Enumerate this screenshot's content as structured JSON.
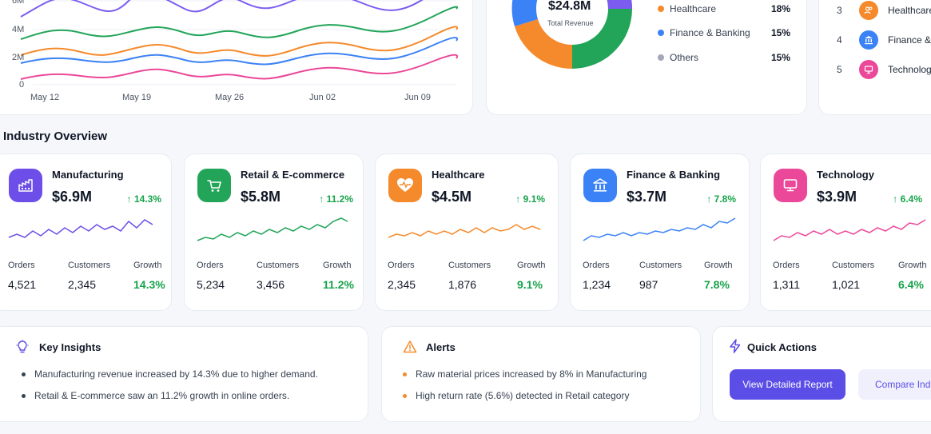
{
  "revenue_trend": {
    "y_ticks": [
      "6M",
      "4M",
      "2M",
      "0"
    ],
    "x_ticks": [
      "May 12",
      "May 19",
      "May 26",
      "Jun 02",
      "Jun 09"
    ]
  },
  "distribution": {
    "center_value": "$24.8M",
    "center_label": "Total Revenue",
    "legend": [
      {
        "name": "Healthcare",
        "pct": "18%",
        "color": "#f58a2c"
      },
      {
        "name": "Finance & Banking",
        "pct": "15%",
        "color": "#3b82f6"
      },
      {
        "name": "Others",
        "pct": "15%",
        "color": "#a3a8b8"
      }
    ]
  },
  "top_industries": [
    {
      "rank": "3",
      "name": "Healthcare",
      "icon": "users-icon",
      "color": "#f58a2c"
    },
    {
      "rank": "4",
      "name": "Finance & B",
      "icon": "bank-icon",
      "color": "#3b82f6"
    },
    {
      "rank": "5",
      "name": "Technology",
      "icon": "monitor-icon",
      "color": "#ec4899"
    }
  ],
  "industry_overview": {
    "title": "Industry Overview",
    "stat_labels": {
      "orders": "Orders",
      "customers": "Customers",
      "growth": "Growth"
    },
    "cards": [
      {
        "name": "Manufacturing",
        "value": "$6.9M",
        "growth": "14.3%",
        "orders": "4,521",
        "customers": "2,345",
        "icon": "factory-icon",
        "color": "#6d4ee8",
        "spark_color": "#6d4ee8"
      },
      {
        "name": "Retail & E-commerce",
        "value": "$5.8M",
        "growth": "11.2%",
        "orders": "5,234",
        "customers": "3,456",
        "icon": "cart-icon",
        "color": "#22a559",
        "spark_color": "#22a559"
      },
      {
        "name": "Healthcare",
        "value": "$4.5M",
        "growth": "9.1%",
        "orders": "2,345",
        "customers": "1,876",
        "icon": "heart-icon",
        "color": "#f58a2c",
        "spark_color": "#f58a2c"
      },
      {
        "name": "Finance & Banking",
        "value": "$3.7M",
        "growth": "7.8%",
        "orders": "1,234",
        "customers": "987",
        "icon": "bank-icon",
        "color": "#3b82f6",
        "spark_color": "#3b82f6"
      },
      {
        "name": "Technology",
        "value": "$3.9M",
        "growth": "6.4%",
        "orders": "1,311",
        "customers": "1,021",
        "icon": "monitor-icon",
        "color": "#ec4899",
        "spark_color": "#ec4899"
      }
    ]
  },
  "key_insights": {
    "title": "Key Insights",
    "items": [
      "Manufacturing revenue increased by 14.3% due to higher demand.",
      "Retail & E-commerce saw an 11.2% growth in online orders."
    ]
  },
  "alerts": {
    "title": "Alerts",
    "items": [
      "Raw material prices increased by 8% in Manufacturing",
      "High return rate (5.6%) detected in Retail category"
    ]
  },
  "quick_actions": {
    "title": "Quick Actions",
    "primary_label": "View Detailed Report",
    "secondary_label": "Compare Indu"
  },
  "colors": {
    "accent": "#5b4ee6",
    "positive": "#16a34a"
  }
}
